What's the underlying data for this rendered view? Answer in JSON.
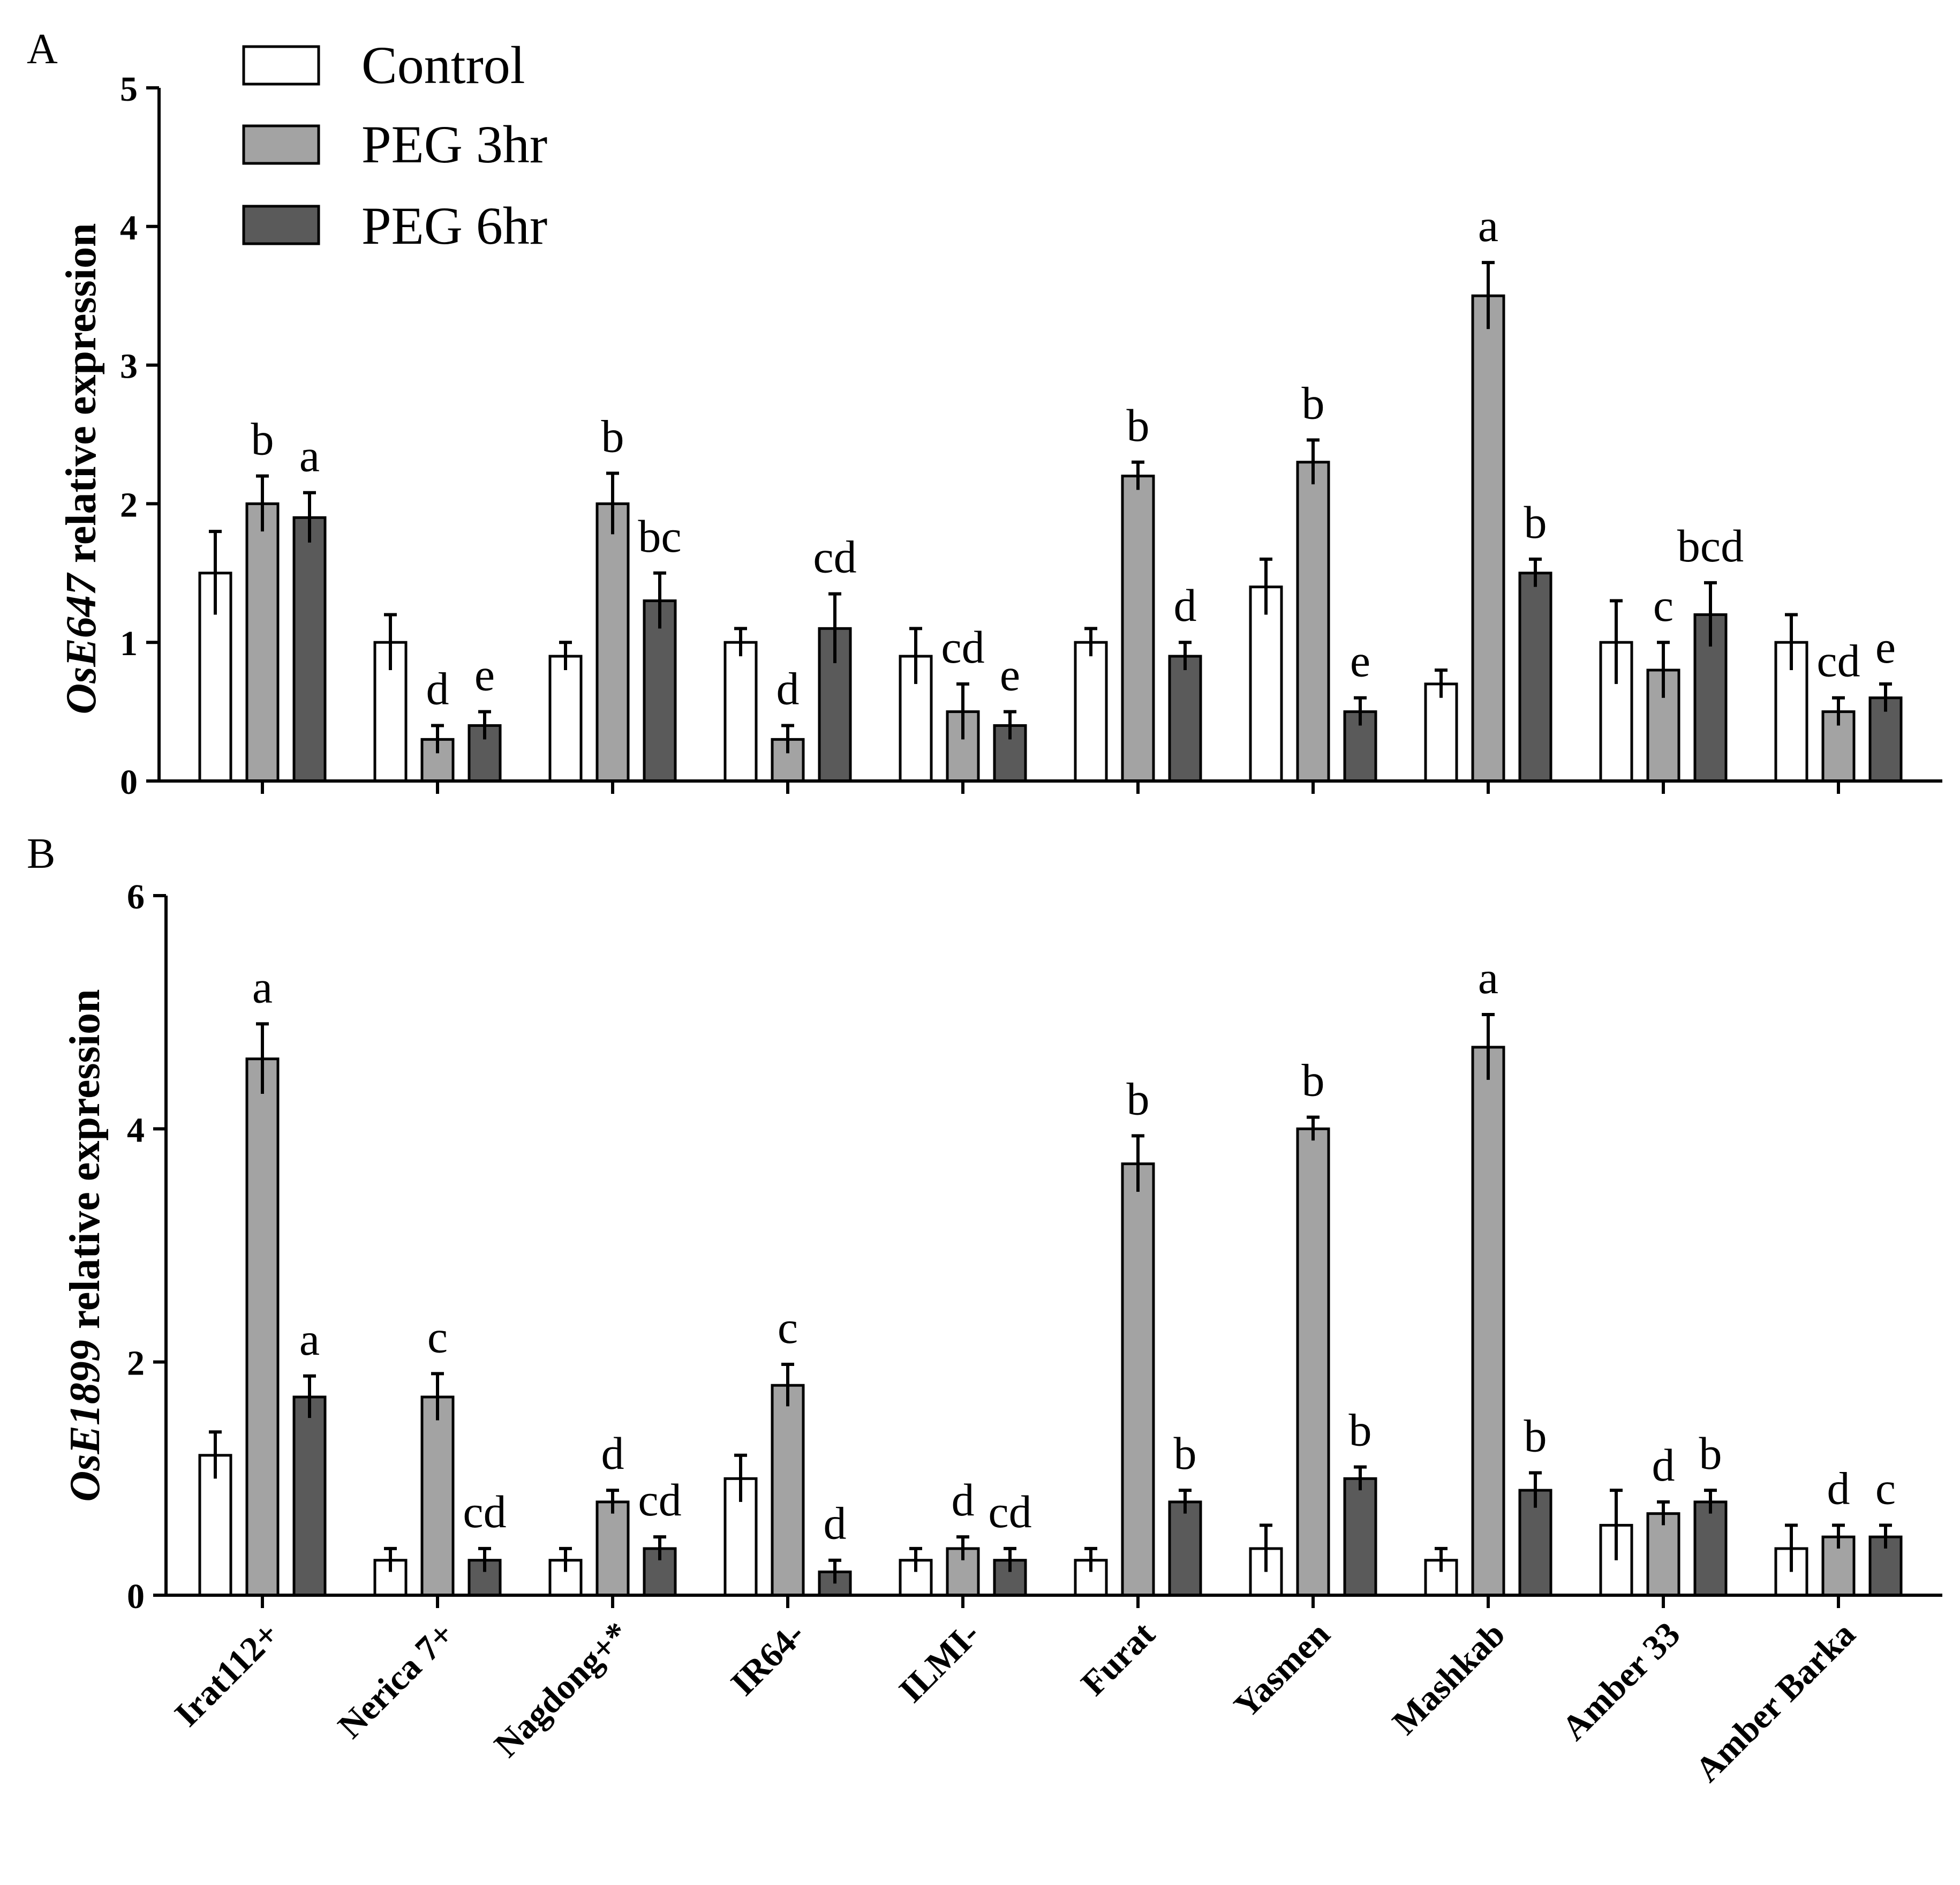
{
  "figure": {
    "legend": [
      "Control",
      "PEG 3hr",
      "PEG 6hr"
    ],
    "colors": {
      "Control": "#ffffff",
      "PEG 3hr": "#a3a3a3",
      "PEG 6hr": "#5a5a5a",
      "stroke": "#000000"
    }
  },
  "chart_data": [
    {
      "panel": "A",
      "type": "bar",
      "title": "",
      "ylabel_gene": "OsE647",
      "ylabel_rest": " relative expression",
      "ylim": [
        0,
        5
      ],
      "yticks": [
        "0",
        "1",
        "2",
        "3",
        "4",
        "5"
      ],
      "categories": [
        "Irat112+",
        "Nerica 7+",
        "Nagdong+*",
        "IR64-",
        "ILMI-",
        "Furat",
        "Yasmen",
        "Mashkab",
        "Amber 33",
        "Amber Barka"
      ],
      "series": [
        {
          "name": "Control",
          "values": [
            1.5,
            1.0,
            0.9,
            1.0,
            0.9,
            1.0,
            1.4,
            0.7,
            1.0,
            1.0
          ],
          "errors": [
            0.3,
            0.2,
            0.1,
            0.1,
            0.2,
            0.1,
            0.2,
            0.1,
            0.3,
            0.2
          ]
        },
        {
          "name": "PEG 3hr",
          "values": [
            2.0,
            0.3,
            2.0,
            0.3,
            0.5,
            2.2,
            2.3,
            3.5,
            0.8,
            0.5
          ],
          "errors": [
            0.2,
            0.1,
            0.22,
            0.1,
            0.2,
            0.1,
            0.16,
            0.24,
            0.2,
            0.1
          ],
          "labels": [
            "b",
            "d",
            "b",
            "d",
            "cd",
            "b",
            "b",
            "a",
            "c",
            "cd"
          ]
        },
        {
          "name": "PEG 6hr",
          "values": [
            1.9,
            0.4,
            1.3,
            1.1,
            0.4,
            0.9,
            0.5,
            1.5,
            1.2,
            0.6
          ],
          "errors": [
            0.18,
            0.1,
            0.2,
            0.25,
            0.1,
            0.1,
            0.1,
            0.1,
            0.23,
            0.1
          ],
          "labels": [
            "a",
            "e",
            "bc",
            "cd",
            "e",
            "d",
            "e",
            "b",
            "bcd",
            "e"
          ]
        }
      ]
    },
    {
      "panel": "B",
      "type": "bar",
      "title": "",
      "ylabel_gene": "OsE1899",
      "ylabel_rest": " relative expression",
      "ylim": [
        0,
        6
      ],
      "yticks": [
        "0",
        "2",
        "4",
        "6"
      ],
      "categories": [
        "Irat112+",
        "Nerica 7+",
        "Nagdong+*",
        "IR64-",
        "ILMI-",
        "Furat",
        "Yasmen",
        "Mashkab",
        "Amber 33",
        "Amber Barka"
      ],
      "series": [
        {
          "name": "Control",
          "values": [
            1.2,
            0.3,
            0.3,
            1.0,
            0.3,
            0.3,
            0.4,
            0.3,
            0.6,
            0.4
          ],
          "errors": [
            0.2,
            0.1,
            0.1,
            0.2,
            0.1,
            0.1,
            0.2,
            0.1,
            0.3,
            0.2
          ]
        },
        {
          "name": "PEG 3hr",
          "values": [
            4.6,
            1.7,
            0.8,
            1.8,
            0.4,
            3.7,
            4.0,
            4.7,
            0.7,
            0.5
          ],
          "errors": [
            0.3,
            0.2,
            0.1,
            0.18,
            0.1,
            0.24,
            0.1,
            0.28,
            0.1,
            0.1
          ],
          "labels": [
            "a",
            "c",
            "d",
            "c",
            "d",
            "b",
            "b",
            "a",
            "d",
            "d"
          ]
        },
        {
          "name": "PEG 6hr",
          "values": [
            1.7,
            0.3,
            0.4,
            0.2,
            0.3,
            0.8,
            1.0,
            0.9,
            0.8,
            0.5
          ],
          "errors": [
            0.18,
            0.1,
            0.1,
            0.1,
            0.1,
            0.1,
            0.1,
            0.15,
            0.1,
            0.1
          ],
          "labels": [
            "a",
            "cd",
            "cd",
            "d",
            "cd",
            "b",
            "b",
            "b",
            "b",
            "c"
          ]
        }
      ]
    }
  ]
}
